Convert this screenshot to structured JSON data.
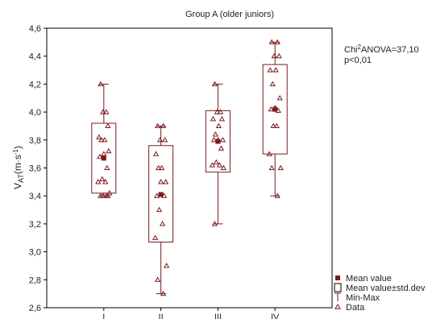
{
  "chart_data": {
    "type": "box",
    "title": "Group A (older juniors)",
    "ylabel": {
      "base": "V",
      "sub": "AT",
      "unit_open": "(m·s",
      "sup": "-1",
      "unit_close": ")"
    },
    "ylim": [
      2.6,
      4.6
    ],
    "yticks": [
      2.6,
      2.8,
      3.0,
      3.2,
      3.4,
      3.6,
      3.8,
      4.0,
      4.2,
      4.4,
      4.6
    ],
    "ytick_labels": [
      "2,6",
      "2,8",
      "3,0",
      "3,2",
      "3,4",
      "3,6",
      "3,8",
      "4,0",
      "4,2",
      "4,4",
      "4,6"
    ],
    "categories": [
      "I",
      "II",
      "III",
      "IV"
    ],
    "grid": false,
    "annotation": {
      "line1_a": "Chi",
      "line1_sup": "2",
      "line1_b": "ANOVA=37,10",
      "line2": "p<0,01"
    },
    "color": "#7a1c1c",
    "groups": [
      {
        "category": "I",
        "mean": 3.67,
        "box_low": 3.42,
        "box_high": 3.92,
        "min": 3.4,
        "max": 4.2,
        "points": [
          4.2,
          4.0,
          4.0,
          3.9,
          3.82,
          3.8,
          3.8,
          3.72,
          3.7,
          3.68,
          3.6,
          3.52,
          3.5,
          3.5,
          3.42,
          3.4,
          3.4,
          3.4,
          3.4
        ]
      },
      {
        "category": "II",
        "mean": 3.41,
        "box_low": 3.07,
        "box_high": 3.76,
        "min": 2.7,
        "max": 3.9,
        "points": [
          3.9,
          3.9,
          3.8,
          3.8,
          3.7,
          3.6,
          3.6,
          3.5,
          3.5,
          3.4,
          3.4,
          3.3,
          3.2,
          3.1,
          2.9,
          2.8,
          2.7
        ]
      },
      {
        "category": "III",
        "mean": 3.79,
        "box_low": 3.57,
        "box_high": 4.01,
        "min": 3.2,
        "max": 4.2,
        "points": [
          4.2,
          4.0,
          4.0,
          3.95,
          3.95,
          3.9,
          3.84,
          3.8,
          3.8,
          3.8,
          3.74,
          3.64,
          3.62,
          3.62,
          3.6,
          3.2
        ]
      },
      {
        "category": "IV",
        "mean": 4.02,
        "box_low": 3.7,
        "box_high": 4.34,
        "min": 3.4,
        "max": 4.5,
        "points": [
          4.5,
          4.5,
          4.4,
          4.4,
          4.3,
          4.3,
          4.2,
          4.1,
          4.03,
          4.02,
          4.01,
          3.9,
          3.9,
          3.7,
          3.6,
          3.6,
          3.4
        ]
      }
    ],
    "legend": {
      "position": "bottom-right",
      "mean_label": "Mean value",
      "box_label": "Mean value±std.dev",
      "minmax_label": "Min-Max",
      "data_label": "Data"
    }
  }
}
